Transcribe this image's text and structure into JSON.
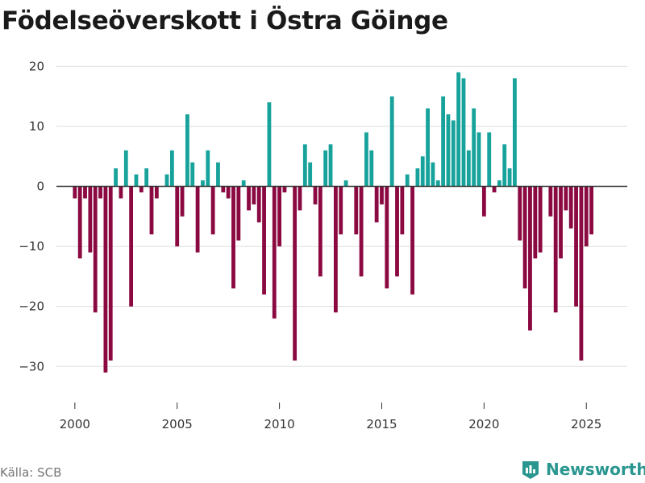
{
  "title": "Födelseöverskott i Östra Göinge",
  "source": "Källa: SCB",
  "brand": "Newsworthy",
  "colors": {
    "positive": "#17a39b",
    "negative": "#8b0941",
    "grid": "#dddddd",
    "zero": "#333333",
    "brand": "#2a9690"
  },
  "chart_data": {
    "type": "bar",
    "title": "Födelseöverskott i Östra Göinge",
    "xlabel": "",
    "ylabel": "",
    "ylim": [
      -36,
      23
    ],
    "xlim": [
      1999.1,
      2027.0
    ],
    "y_ticks": [
      20,
      10,
      0,
      -10,
      -20,
      -30
    ],
    "x_ticks": [
      2000,
      2005,
      2010,
      2015,
      2020,
      2025
    ],
    "bar_width": 0.19,
    "x": [
      2000.0,
      2000.25,
      2000.5,
      2000.75,
      2001.0,
      2001.25,
      2001.5,
      2001.75,
      2002.0,
      2002.25,
      2002.5,
      2002.75,
      2003.0,
      2003.25,
      2003.5,
      2003.75,
      2004.0,
      2004.25,
      2004.5,
      2004.75,
      2005.0,
      2005.25,
      2005.5,
      2005.75,
      2006.0,
      2006.25,
      2006.5,
      2006.75,
      2007.0,
      2007.25,
      2007.5,
      2007.75,
      2008.0,
      2008.25,
      2008.5,
      2008.75,
      2009.0,
      2009.25,
      2009.5,
      2009.75,
      2010.0,
      2010.25,
      2010.5,
      2010.75,
      2011.0,
      2011.25,
      2011.5,
      2011.75,
      2012.0,
      2012.25,
      2012.5,
      2012.75,
      2013.0,
      2013.25,
      2013.5,
      2013.75,
      2014.0,
      2014.25,
      2014.5,
      2014.75,
      2015.0,
      2015.25,
      2015.5,
      2015.75,
      2016.0,
      2016.25,
      2016.5,
      2016.75,
      2017.0,
      2017.25,
      2017.5,
      2017.75,
      2018.0,
      2018.25,
      2018.5,
      2018.75,
      2019.0,
      2019.25,
      2019.5,
      2019.75,
      2020.0,
      2020.25,
      2020.5,
      2020.75,
      2021.0,
      2021.25,
      2021.5,
      2021.75,
      2022.0,
      2022.25,
      2022.5,
      2022.75,
      2023.0,
      2023.25,
      2023.5,
      2023.75,
      2024.0,
      2024.25,
      2024.5,
      2024.75,
      2025.0,
      2025.25,
      2025.5
    ],
    "values": [
      -2,
      -12,
      -2,
      -11,
      -21,
      -2,
      -31,
      -29,
      3,
      -2,
      6,
      -20,
      2,
      -1,
      3,
      -8,
      -2,
      0,
      2,
      6,
      -10,
      -5,
      12,
      4,
      -11,
      1,
      6,
      -8,
      4,
      -1,
      -2,
      -17,
      -9,
      1,
      -4,
      -3,
      -6,
      -18,
      14,
      -22,
      -10,
      -1,
      0,
      -29,
      -4,
      7,
      4,
      -3,
      -15,
      6,
      7,
      -21,
      -8,
      1,
      0,
      -8,
      -15,
      9,
      6,
      -6,
      -3,
      -17,
      15,
      -15,
      -8,
      2,
      -18,
      3,
      5,
      13,
      4,
      1,
      15,
      12,
      11,
      19,
      18,
      6,
      13,
      9,
      -5,
      9,
      -1,
      1,
      7,
      3,
      18,
      -9,
      -17,
      -24,
      -12,
      -11,
      0,
      -5,
      -21,
      -12,
      -4,
      -7,
      -20,
      -29,
      -10,
      -8,
      0
    ]
  }
}
